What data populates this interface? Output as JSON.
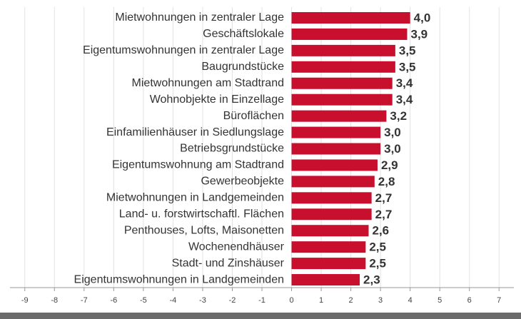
{
  "chart_data": {
    "type": "bar",
    "orientation": "horizontal",
    "categories": [
      "Mietwohnungen in zentraler Lage",
      "Geschäftslokale",
      "Eigentumswohnungen in zentraler Lage",
      "Baugrundstücke",
      "Mietwohnungen am Stadtrand",
      "Wohnobjekte in Einzellage",
      "Büroflächen",
      "Einfamilienhäuser in Siedlungslage",
      "Betriebsgrundstücke",
      "Eigentumswohnung am Stadtrand",
      "Gewerbeobjekte",
      "Mietwohnungen in Landgemeinden",
      "Land- u. forstwirtschaftl. Flächen",
      "Penthouses, Lofts, Maisonetten",
      "Wochenendhäuser",
      "Stadt- und Zinshäuser",
      "Eigentumswohnungen in Landgemeinden"
    ],
    "values": [
      4.0,
      3.9,
      3.5,
      3.5,
      3.4,
      3.4,
      3.2,
      3.0,
      3.0,
      2.9,
      2.8,
      2.7,
      2.7,
      2.6,
      2.5,
      2.5,
      2.3
    ],
    "value_labels": [
      "4,0",
      "3,9",
      "3,5",
      "3,5",
      "3,4",
      "3,4",
      "3,2",
      "3,0",
      "3,0",
      "2,9",
      "2,8",
      "2,7",
      "2,7",
      "2,6",
      "2,5",
      "2,5",
      "2,3"
    ],
    "color": "#c8102e",
    "xlim": [
      -9.5,
      7.5
    ],
    "xticks": [
      -9,
      -8,
      -7,
      -6,
      -5,
      -4,
      -3,
      -2,
      -1,
      0,
      1,
      2,
      3,
      4,
      5,
      6,
      7
    ],
    "grid": true
  }
}
